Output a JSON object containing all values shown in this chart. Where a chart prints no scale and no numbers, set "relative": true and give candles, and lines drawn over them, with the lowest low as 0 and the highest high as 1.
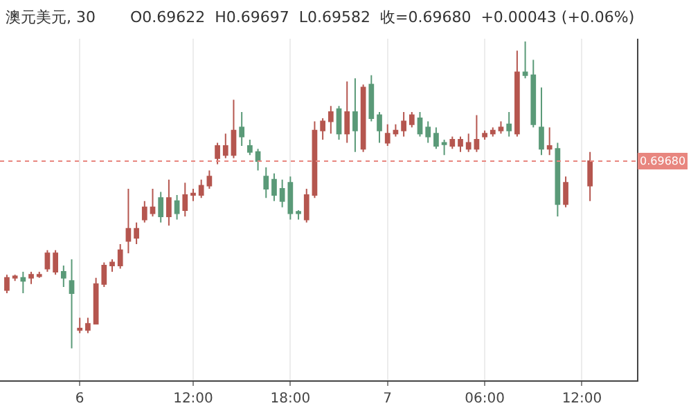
{
  "chart_data": {
    "type": "candlestick",
    "title": "澳元美元, 30",
    "subtitle": "O0.69622  H0.69697  L0.69582  收=0.69680  +0.00043 (+0.06%)",
    "relative": true,
    "grid": "x",
    "categories": [
      null,
      null,
      null,
      null,
      null,
      null,
      null,
      null,
      null,
      "6",
      null,
      null,
      null,
      null,
      null,
      null,
      null,
      null,
      null,
      null,
      null,
      null,
      null,
      "12:00",
      null,
      null,
      null,
      null,
      null,
      null,
      null,
      null,
      null,
      null,
      null,
      "18:00",
      null,
      null,
      null,
      null,
      null,
      null,
      null,
      null,
      null,
      null,
      null,
      "7",
      null,
      null,
      null,
      null,
      null,
      null,
      null,
      null,
      null,
      null,
      null,
      "06:00",
      null,
      null,
      null,
      null,
      null,
      null,
      null,
      null,
      null,
      null,
      null,
      "12:00",
      null
    ],
    "series": [
      {
        "colors": [
          "#b5564f",
          "#b5564f",
          "#5a9a78",
          "#b5564f",
          "#b5564f",
          "#b5564f",
          "#b5564f",
          "#5a9a78",
          "#5a9a78",
          "#b5564f",
          "#b5564f",
          "#b5564f",
          "#b5564f",
          "#b5564f",
          "#b5564f",
          "#b5564f",
          "#b5564f",
          "#b5564f",
          "#b5564f",
          "#5a9a78",
          "#b5564f",
          "#5a9a78",
          "#b5564f",
          "#b5564f",
          "#b5564f",
          "#b5564f",
          "#b5564f",
          "#b5564f",
          "#b5564f",
          "#5a9a78",
          "#5a9a78",
          "#5a9a78",
          "#5a9a78",
          "#5a9a78",
          "#5a9a78",
          "#5a9a78",
          "#5a9a78",
          "#b5564f",
          "#b5564f",
          "#b5564f",
          "#b5564f",
          "#5a9a78",
          "#b5564f",
          "#5a9a78",
          "#b5564f",
          "#5a9a78",
          "#5a9a78",
          "#b5564f",
          "#b5564f",
          "#b5564f",
          "#b5564f",
          "#5a9a78",
          "#5a9a78",
          "#5a9a78",
          "#5a9a78",
          "#b5564f",
          "#b5564f",
          "#b5564f",
          "#b5564f",
          "#b5564f",
          "#b5564f",
          "#b5564f",
          "#5a9a78",
          "#b5564f",
          "#5a9a78",
          "#5a9a78",
          "#5a9a78",
          "#b5564f",
          "#5a9a78",
          "#b5564f",
          null,
          null,
          "#b5564f"
        ],
        "ohlc": [
          [
            0.19,
            0.24,
            0.18,
            0.23
          ],
          [
            0.23,
            0.24,
            0.22,
            0.235
          ],
          [
            0.23,
            0.25,
            0.18,
            0.22
          ],
          [
            0.23,
            0.25,
            0.21,
            0.24
          ],
          [
            0.235,
            0.25,
            0.23,
            0.24
          ],
          [
            0.26,
            0.32,
            0.25,
            0.31
          ],
          [
            0.25,
            0.32,
            0.24,
            0.31
          ],
          [
            0.25,
            0.27,
            0.2,
            0.23
          ],
          [
            0.22,
            0.29,
            0.0,
            0.18
          ],
          [
            0.06,
            0.1,
            0.05,
            0.065
          ],
          [
            0.06,
            0.1,
            0.05,
            0.08
          ],
          [
            0.08,
            0.23,
            0.08,
            0.21
          ],
          [
            0.21,
            0.28,
            0.2,
            0.27
          ],
          [
            0.27,
            0.29,
            0.25,
            0.28
          ],
          [
            0.27,
            0.34,
            0.26,
            0.32
          ],
          [
            0.35,
            0.52,
            0.31,
            0.39
          ],
          [
            0.36,
            0.41,
            0.34,
            0.39
          ],
          [
            0.42,
            0.48,
            0.41,
            0.46
          ],
          [
            0.44,
            0.52,
            0.43,
            0.46
          ],
          [
            0.49,
            0.51,
            0.41,
            0.43
          ],
          [
            0.43,
            0.55,
            0.4,
            0.49
          ],
          [
            0.48,
            0.5,
            0.42,
            0.44
          ],
          [
            0.45,
            0.54,
            0.43,
            0.5
          ],
          [
            0.5,
            0.52,
            0.48,
            0.505
          ],
          [
            0.5,
            0.55,
            0.49,
            0.53
          ],
          [
            0.53,
            0.58,
            0.52,
            0.56
          ],
          [
            0.62,
            0.67,
            0.6,
            0.66
          ],
          [
            0.63,
            0.7,
            0.62,
            0.66
          ],
          [
            0.63,
            0.81,
            0.62,
            0.71
          ],
          [
            0.72,
            0.77,
            0.66,
            0.69
          ],
          [
            0.66,
            0.68,
            0.63,
            0.64
          ],
          [
            0.64,
            0.65,
            0.58,
            0.61
          ],
          [
            0.56,
            0.59,
            0.49,
            0.52
          ],
          [
            0.55,
            0.57,
            0.48,
            0.5
          ],
          [
            0.52,
            0.55,
            0.46,
            0.48
          ],
          [
            0.54,
            0.56,
            0.42,
            0.44
          ],
          [
            0.445,
            0.45,
            0.42,
            0.44
          ],
          [
            0.42,
            0.52,
            0.41,
            0.5
          ],
          [
            0.5,
            0.74,
            0.49,
            0.71
          ],
          [
            0.71,
            0.75,
            0.68,
            0.74
          ],
          [
            0.74,
            0.79,
            0.7,
            0.77
          ],
          [
            0.78,
            0.79,
            0.68,
            0.7
          ],
          [
            0.7,
            0.87,
            0.67,
            0.77
          ],
          [
            0.77,
            0.88,
            0.64,
            0.71
          ],
          [
            0.65,
            0.86,
            0.64,
            0.85
          ],
          [
            0.86,
            0.89,
            0.74,
            0.75
          ],
          [
            0.76,
            0.77,
            0.67,
            0.71
          ],
          [
            0.67,
            0.73,
            0.66,
            0.7
          ],
          [
            0.7,
            0.73,
            0.69,
            0.71
          ],
          [
            0.71,
            0.77,
            0.69,
            0.74
          ],
          [
            0.73,
            0.77,
            0.72,
            0.76
          ],
          [
            0.75,
            0.77,
            0.69,
            0.7
          ],
          [
            0.72,
            0.74,
            0.67,
            0.69
          ],
          [
            0.7,
            0.72,
            0.65,
            0.66
          ],
          [
            0.67,
            0.68,
            0.63,
            0.665
          ],
          [
            0.66,
            0.69,
            0.65,
            0.68
          ],
          [
            0.66,
            0.69,
            0.64,
            0.68
          ],
          [
            0.65,
            0.7,
            0.64,
            0.67
          ],
          [
            0.65,
            0.76,
            0.64,
            0.68
          ],
          [
            0.69,
            0.71,
            0.68,
            0.7
          ],
          [
            0.7,
            0.72,
            0.69,
            0.71
          ],
          [
            0.71,
            0.74,
            0.7,
            0.72
          ],
          [
            0.73,
            0.77,
            0.69,
            0.71
          ],
          [
            0.7,
            0.97,
            0.69,
            0.9
          ],
          [
            0.9,
            1.0,
            0.88,
            0.89
          ],
          [
            0.89,
            0.94,
            0.72,
            0.73
          ],
          [
            0.72,
            0.85,
            0.63,
            0.65
          ],
          [
            0.65,
            0.72,
            0.63,
            0.66
          ],
          [
            0.65,
            0.67,
            0.43,
            0.47
          ],
          [
            0.47,
            0.56,
            0.46,
            0.54
          ],
          null,
          null,
          [
            0.53,
            0.64,
            0.48,
            0.61
          ]
        ]
      }
    ],
    "ref_lines": [
      {
        "axis": "y",
        "value": 0.61,
        "color": "#e8867f",
        "line_style": "dotted"
      }
    ],
    "annotations": [
      "0.69680"
    ]
  }
}
